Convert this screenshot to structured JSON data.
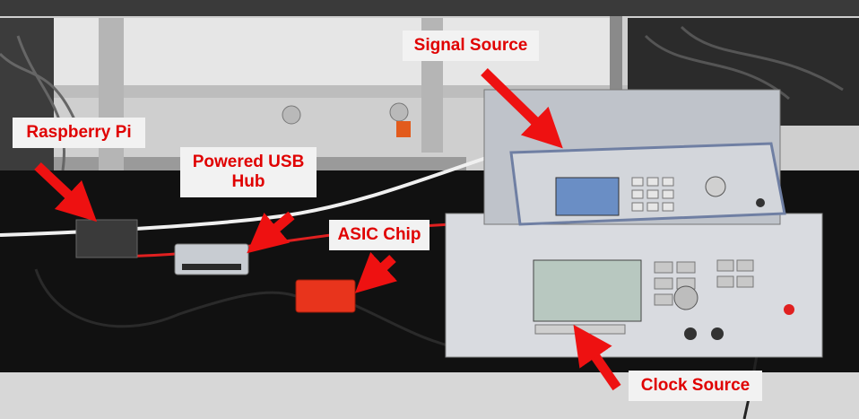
{
  "image": {
    "annotations": [
      {
        "id": "signal-source",
        "text": "Signal Source"
      },
      {
        "id": "raspberry-pi",
        "text": "Raspberry Pi"
      },
      {
        "id": "powered-usb-hub",
        "text": "Powered USB Hub"
      },
      {
        "id": "asic-chip",
        "text": "ASIC Chip"
      },
      {
        "id": "clock-source",
        "text": "Clock Source"
      }
    ],
    "colors": {
      "label_text": "#e00000",
      "label_background": "#f2f2f2",
      "arrow": "#ee1111",
      "bench_surface": "#111111",
      "instrument_body": "#d9dbe0",
      "asic_box": "#e8341c"
    }
  }
}
